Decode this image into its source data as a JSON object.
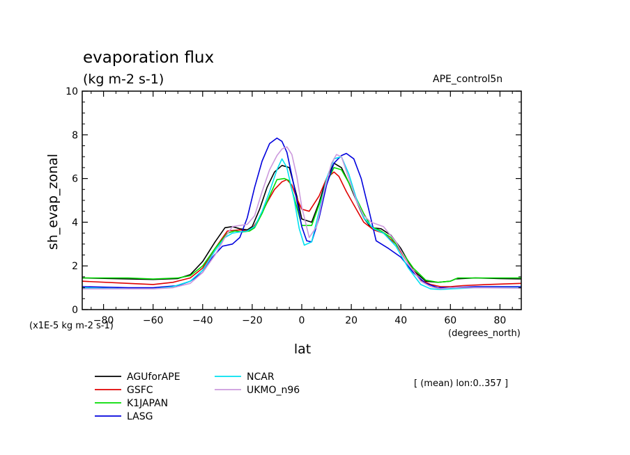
{
  "chart_data": {
    "type": "line",
    "title": "evaporation flux",
    "subtitle": "(kg m-2 s-1)",
    "run_label": "APE_control5n",
    "xlabel": "lat",
    "x_units": "(degrees_north)",
    "ylabel": "sh_evap_zonal",
    "y_units": "(x1E-5 kg m-2 s-1)",
    "mean_note": "[ (mean) lon:0..357 ]",
    "xlim": [
      -88.6,
      88.6
    ],
    "ylim": [
      0,
      10
    ],
    "x_ticks": [
      -80,
      -60,
      -40,
      -20,
      0,
      20,
      40,
      60,
      80
    ],
    "y_ticks": [
      0,
      2,
      4,
      6,
      8,
      10
    ],
    "grid": false,
    "legend_position": "bottom-left",
    "series": [
      {
        "name": "AGUforAPE",
        "color": "#000000",
        "x": [
          -88.6,
          -70,
          -60,
          -50,
          -45,
          -40,
          -35,
          -31,
          -28,
          -25,
          -22,
          -20,
          -17,
          -14,
          -11,
          -8,
          -5,
          -2,
          0,
          4,
          7,
          10,
          13,
          16,
          19,
          22,
          25,
          28,
          32,
          36,
          40,
          45,
          50,
          55,
          60,
          62,
          70,
          80,
          88.6
        ],
        "y": [
          1.45,
          1.4,
          1.38,
          1.42,
          1.6,
          2.2,
          3.1,
          3.75,
          3.8,
          3.7,
          3.65,
          3.8,
          4.6,
          5.6,
          6.3,
          6.6,
          6.5,
          5.2,
          4.15,
          4.0,
          4.9,
          6.0,
          6.7,
          6.5,
          5.8,
          5.0,
          4.2,
          3.75,
          3.7,
          3.4,
          2.8,
          1.8,
          1.3,
          1.25,
          1.3,
          1.4,
          1.45,
          1.42,
          1.4
        ]
      },
      {
        "name": "GSFC",
        "color": "#e00000",
        "x": [
          -88.6,
          -70,
          -60,
          -52,
          -45,
          -40,
          -35,
          -30,
          -25,
          -22,
          -20,
          -17,
          -14,
          -11,
          -8,
          -6,
          -4,
          -2,
          0,
          3,
          7,
          10,
          13,
          15,
          18,
          22,
          25,
          29,
          33,
          38,
          43,
          48,
          52,
          56,
          60,
          65,
          75,
          88.6
        ],
        "y": [
          1.3,
          1.2,
          1.15,
          1.25,
          1.45,
          1.9,
          2.8,
          3.6,
          3.65,
          3.6,
          3.7,
          4.2,
          4.9,
          5.5,
          5.85,
          5.95,
          5.7,
          5.1,
          4.6,
          4.5,
          5.2,
          6.0,
          6.3,
          6.1,
          5.4,
          4.6,
          4.0,
          3.65,
          3.5,
          3.0,
          2.1,
          1.35,
          1.15,
          1.05,
          1.05,
          1.1,
          1.15,
          1.2
        ]
      },
      {
        "name": "K1JAPAN",
        "color": "#00dd00",
        "x": [
          -88.6,
          -70,
          -60,
          -50,
          -45,
          -40,
          -35,
          -30,
          -27,
          -24,
          -21,
          -19,
          -16,
          -13,
          -10,
          -7,
          -5,
          -3,
          0,
          4,
          7,
          10,
          13,
          16,
          19,
          22,
          25,
          28,
          32,
          36,
          40,
          45,
          50,
          55,
          60,
          63,
          75,
          88.6
        ],
        "y": [
          1.45,
          1.45,
          1.4,
          1.45,
          1.55,
          2.0,
          2.8,
          3.5,
          3.6,
          3.55,
          3.6,
          3.75,
          4.4,
          5.2,
          5.95,
          6.0,
          5.9,
          5.1,
          3.85,
          3.85,
          4.8,
          5.8,
          6.5,
          6.4,
          5.8,
          5.1,
          4.4,
          3.8,
          3.6,
          3.3,
          2.7,
          1.9,
          1.35,
          1.25,
          1.3,
          1.45,
          1.45,
          1.45
        ]
      },
      {
        "name": "LASG",
        "color": "#0000dd",
        "x": [
          -88.6,
          -70,
          -60,
          -50,
          -45,
          -40,
          -36,
          -32,
          -28,
          -25,
          -22,
          -19,
          -16,
          -13,
          -10,
          -8,
          -6,
          -3,
          0,
          2,
          4,
          7,
          10,
          13,
          16,
          18,
          21,
          24,
          27,
          30,
          35,
          40,
          45,
          50,
          55,
          60,
          70,
          88.6
        ],
        "y": [
          1.05,
          1.0,
          1.0,
          1.1,
          1.3,
          1.7,
          2.4,
          2.9,
          3.0,
          3.3,
          4.2,
          5.6,
          6.8,
          7.6,
          7.85,
          7.7,
          7.2,
          5.6,
          3.8,
          3.15,
          3.1,
          4.2,
          5.7,
          6.7,
          7.05,
          7.15,
          6.9,
          6.0,
          4.6,
          3.15,
          2.8,
          2.4,
          1.7,
          1.2,
          1.0,
          1.0,
          1.05,
          1.05
        ]
      },
      {
        "name": "NCAR",
        "color": "#00e0f0",
        "x": [
          -88.6,
          -70,
          -60,
          -52,
          -45,
          -40,
          -35,
          -31,
          -28,
          -25,
          -22,
          -19,
          -16,
          -13,
          -10,
          -8,
          -6,
          -3,
          -1,
          1,
          4,
          7,
          10,
          13,
          16,
          19,
          22,
          25,
          29,
          33,
          38,
          43,
          48,
          52,
          56,
          60,
          70,
          88.6
        ],
        "y": [
          1.0,
          0.95,
          0.95,
          1.05,
          1.3,
          1.8,
          2.7,
          3.3,
          3.5,
          3.55,
          3.6,
          3.8,
          4.5,
          5.4,
          6.4,
          6.9,
          6.5,
          5.0,
          3.7,
          2.95,
          3.1,
          4.5,
          6.0,
          6.9,
          7.0,
          6.2,
          5.1,
          4.2,
          3.7,
          3.5,
          2.9,
          1.9,
          1.15,
          0.95,
          0.92,
          0.95,
          1.0,
          1.0
        ]
      },
      {
        "name": "UKMO_n96",
        "color": "#cc99dd",
        "x": [
          -88.6,
          -70,
          -60,
          -52,
          -45,
          -40,
          -35,
          -31,
          -28,
          -25,
          -22,
          -19,
          -16,
          -13,
          -10,
          -8,
          -6,
          -4,
          -2,
          0,
          3,
          6,
          9,
          12,
          14,
          16,
          19,
          22,
          25,
          28,
          33,
          38,
          43,
          48,
          52,
          56,
          60,
          70,
          88.6
        ],
        "y": [
          0.95,
          0.95,
          0.95,
          1.0,
          1.2,
          1.7,
          2.5,
          3.3,
          3.8,
          3.85,
          3.9,
          4.3,
          5.4,
          6.4,
          7.05,
          7.35,
          7.45,
          7.1,
          6.1,
          4.7,
          3.3,
          3.8,
          5.4,
          6.7,
          7.1,
          7.0,
          6.0,
          5.0,
          4.3,
          4.0,
          3.8,
          3.1,
          2.1,
          1.3,
          1.05,
          0.95,
          1.0,
          1.0,
          0.98
        ]
      }
    ]
  }
}
